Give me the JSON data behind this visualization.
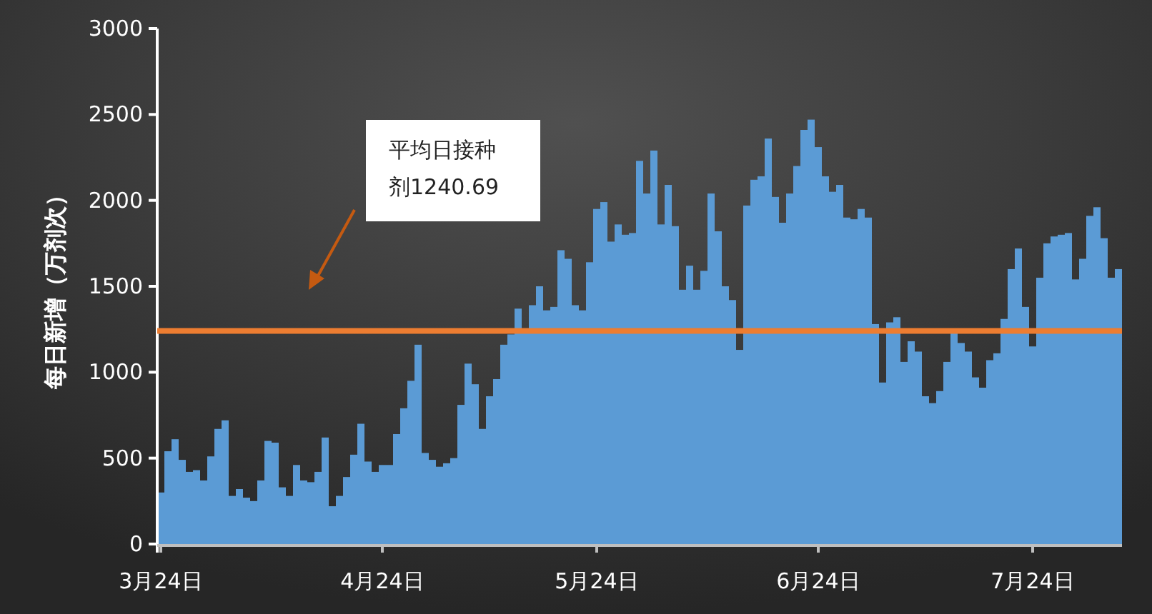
{
  "chart_data": {
    "type": "bar",
    "ylabel": "每日新增（万剂次）",
    "categories": [
      "3月24日",
      null,
      null,
      null,
      null,
      null,
      null,
      null,
      null,
      null,
      null,
      null,
      null,
      null,
      null,
      null,
      null,
      null,
      null,
      null,
      null,
      null,
      null,
      null,
      null,
      null,
      null,
      null,
      null,
      null,
      null,
      "4月24日",
      null,
      null,
      null,
      null,
      null,
      null,
      null,
      null,
      null,
      null,
      null,
      null,
      null,
      null,
      null,
      null,
      null,
      null,
      null,
      null,
      null,
      null,
      null,
      null,
      null,
      null,
      null,
      null,
      null,
      "5月24日",
      null,
      null,
      null,
      null,
      null,
      null,
      null,
      null,
      null,
      null,
      null,
      null,
      null,
      null,
      null,
      null,
      null,
      null,
      null,
      null,
      null,
      null,
      null,
      null,
      null,
      null,
      null,
      null,
      null,
      null,
      "6月24日",
      null,
      null,
      null,
      null,
      null,
      null,
      null,
      null,
      null,
      null,
      null,
      null,
      null,
      null,
      null,
      null,
      null,
      null,
      null,
      null,
      null,
      null,
      null,
      null,
      null,
      null,
      null,
      null,
      null,
      "7月24日",
      null,
      null,
      null,
      null,
      null,
      null,
      null,
      null,
      null,
      null,
      null,
      null
    ],
    "series": [
      {
        "color": "#5b9bd5",
        "values": [
          300,
          540,
          610,
          490,
          420,
          430,
          370,
          510,
          670,
          720,
          280,
          320,
          270,
          250,
          370,
          600,
          590,
          330,
          280,
          460,
          370,
          360,
          420,
          620,
          220,
          280,
          390,
          520,
          700,
          480,
          420,
          460,
          460,
          640,
          790,
          950,
          1160,
          530,
          490,
          450,
          470,
          500,
          810,
          1050,
          930,
          670,
          860,
          960,
          1160,
          1220,
          1370,
          1250,
          1390,
          1500,
          1360,
          1380,
          1710,
          1660,
          1390,
          1360,
          1640,
          1950,
          1990,
          1760,
          1860,
          1800,
          1810,
          2230,
          2040,
          2290,
          1860,
          2090,
          1850,
          1480,
          1620,
          1480,
          1590,
          2040,
          1820,
          1500,
          1420,
          1130,
          1970,
          2120,
          2140,
          2360,
          2020,
          1870,
          2040,
          2200,
          2410,
          2470,
          2310,
          2140,
          2050,
          2090,
          1900,
          1890,
          1950,
          1900,
          1280,
          940,
          1290,
          1320,
          1060,
          1180,
          1120,
          860,
          820,
          890,
          1060,
          1230,
          1170,
          1120,
          970,
          910,
          1070,
          1110,
          1310,
          1600,
          1720,
          1380,
          1150,
          1550,
          1750,
          1790,
          1800,
          1810,
          1540,
          1660,
          1910,
          1960,
          1780,
          1550,
          1600
        ]
      }
    ],
    "ylim": [
      0,
      3000
    ],
    "yticks": [
      0,
      500,
      1000,
      1500,
      2000,
      2500,
      3000
    ],
    "ref_lines": [
      {
        "axis": "y",
        "value": 1240.69,
        "color": "#ed7d31"
      }
    ],
    "annotations": [
      "平均日接种剂1240.69"
    ],
    "grid": false
  }
}
